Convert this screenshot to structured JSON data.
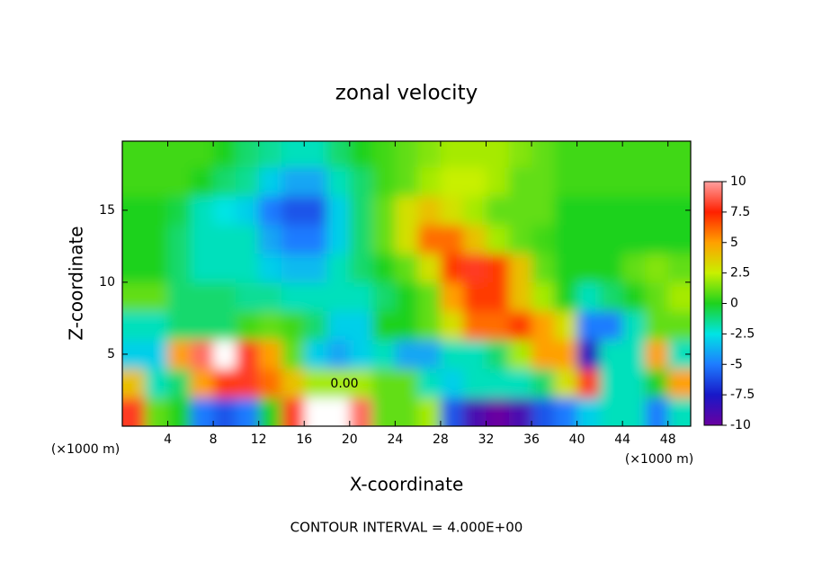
{
  "chart_data": {
    "type": "contour",
    "title": "zonal velocity",
    "x_label": "X-coordinate",
    "y_label": "Z-coordinate",
    "x_unit": "(×1000 m)",
    "x_unit_left": "(×1000 m)",
    "annotation": "CONTOUR INTERVAL = 4.000E+00",
    "contour_label": "0.00",
    "xlim": [
      0,
      50
    ],
    "ylim": [
      0,
      19.8
    ],
    "xticks": [
      4,
      8,
      12,
      16,
      20,
      24,
      28,
      32,
      36,
      40,
      44,
      48
    ],
    "yticks": [
      5,
      10,
      15
    ],
    "zlim": [
      -10,
      10
    ],
    "colorbar_ticks": [
      10,
      7.5,
      5,
      2.5,
      0,
      -2.5,
      -5,
      -7.5,
      -10
    ],
    "colormap": [
      "#6a00a0",
      "#1818c8",
      "#1e7cff",
      "#00e4e4",
      "#1ed21e",
      "#c8f000",
      "#ffa000",
      "#ff2000",
      "#ffa0a0"
    ],
    "over_color": "#ffffff",
    "x": [
      1,
      3,
      5,
      7,
      9,
      11,
      13,
      15,
      17,
      19,
      21,
      23,
      25,
      27,
      29,
      31,
      33,
      35,
      37,
      39,
      41,
      43,
      45,
      47,
      49
    ],
    "y": [
      1,
      3,
      5,
      7,
      9,
      11,
      13,
      15,
      17,
      19
    ],
    "z": [
      [
        8,
        1,
        0,
        -5,
        -6,
        -5,
        0,
        8,
        10.5,
        10.5,
        9,
        1,
        1,
        2,
        -6,
        -9,
        -10,
        -9,
        -6,
        -5,
        -3,
        -2,
        -2,
        -5,
        -2
      ],
      [
        4,
        -2,
        -1,
        5,
        7,
        8,
        6,
        4,
        2,
        2,
        2,
        1,
        1,
        -2,
        -3,
        -2,
        -2,
        -2,
        -1,
        3,
        8,
        -2,
        -2,
        0,
        5
      ],
      [
        -3,
        -3,
        5,
        9,
        11,
        8,
        5,
        1,
        -3,
        -4,
        -3,
        -2,
        -4,
        -4,
        -2,
        -2,
        -1,
        2,
        5,
        5,
        -8,
        -2,
        -2,
        5,
        -2
      ],
      [
        -2,
        -2,
        -1,
        -1,
        -1,
        0.5,
        1,
        0.5,
        -1,
        -3,
        -3,
        0,
        0,
        1,
        3,
        6,
        6,
        7,
        5,
        3,
        -5,
        -5,
        -2,
        1,
        1
      ],
      [
        1,
        1,
        -1,
        -1,
        -1,
        -1.5,
        -1.5,
        -2,
        -2,
        -2,
        -2,
        -1,
        0,
        1,
        5,
        7,
        7,
        4,
        2,
        0,
        -2,
        -1,
        0,
        1,
        2
      ],
      [
        0,
        0,
        -1,
        -2,
        -2,
        -2,
        -3,
        -3.5,
        -3.5,
        -2,
        -1,
        0,
        1,
        3,
        7,
        8,
        7,
        4,
        1,
        0,
        0,
        0,
        1,
        1.5,
        1
      ],
      [
        0,
        0,
        -1,
        -2,
        -2,
        -2,
        -4,
        -5,
        -5,
        -3,
        -1,
        1,
        3,
        6,
        6,
        4,
        2,
        1,
        0.5,
        0,
        0,
        0,
        0,
        0,
        0
      ],
      [
        0,
        0,
        -0.5,
        -2,
        -2.5,
        -3,
        -5,
        -6,
        -6,
        -3,
        -1,
        1,
        3,
        4,
        3,
        2,
        1,
        1,
        1,
        0,
        0,
        0,
        0,
        0,
        0
      ],
      [
        0.5,
        0.5,
        0.5,
        0,
        -1,
        -1.5,
        -3,
        -4,
        -4,
        -2,
        -1,
        0.5,
        1,
        2,
        2.5,
        2.5,
        2,
        1,
        1,
        0.5,
        0.5,
        0.5,
        0.5,
        0.5,
        0.5
      ],
      [
        0.5,
        0.5,
        0.5,
        0.5,
        0,
        -1,
        -1.5,
        -2,
        -2,
        -1,
        0,
        0.5,
        1,
        1.5,
        2,
        2,
        2,
        1.5,
        1,
        0.5,
        0.5,
        0.5,
        0.5,
        0.5,
        0.5
      ]
    ]
  }
}
